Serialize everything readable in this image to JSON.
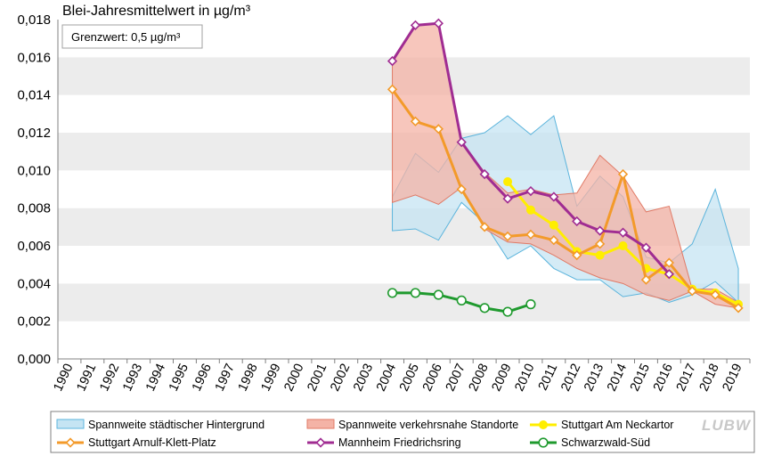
{
  "chart_data": {
    "type": "line",
    "title": "Blei-Jahresmittelwert in µg/m³",
    "note": "Grenzwert: 0,5 µg/m³",
    "ylim": [
      0,
      0.018
    ],
    "y_ticks": [
      "0,000",
      "0,002",
      "0,004",
      "0,006",
      "0,008",
      "0,010",
      "0,012",
      "0,014",
      "0,016",
      "0,018"
    ],
    "y_tick_values": [
      0,
      0.002,
      0.004,
      0.006,
      0.008,
      0.01,
      0.012,
      0.014,
      0.016,
      0.018
    ],
    "categories": [
      "1990",
      "1991",
      "1992",
      "1993",
      "1994",
      "1995",
      "1996",
      "1997",
      "1998",
      "1999",
      "2000",
      "2001",
      "2002",
      "2003",
      "2004",
      "2005",
      "2006",
      "2007",
      "2008",
      "2009",
      "2010",
      "2011",
      "2012",
      "2013",
      "2014",
      "2015",
      "2016",
      "2017",
      "2018",
      "2019"
    ],
    "grid": "horizontal bands",
    "legend_position": "bottom",
    "ranges": [
      {
        "name": "Spannweite städtischer Hintergrund",
        "fill": "#c5e4f3",
        "stroke": "#5bb4dc",
        "x": [
          2004,
          2005,
          2006,
          2007,
          2008,
          2009,
          2010,
          2011,
          2012,
          2013,
          2014,
          2015,
          2016,
          2017,
          2018,
          2019
        ],
        "upper": [
          0.0086,
          0.0109,
          0.0099,
          0.0117,
          0.012,
          0.0129,
          0.0119,
          0.0129,
          0.0081,
          0.0097,
          0.0086,
          0.0054,
          0.0051,
          0.0061,
          0.009,
          0.0048
        ],
        "lower": [
          0.0068,
          0.0069,
          0.0063,
          0.0083,
          0.0072,
          0.0053,
          0.006,
          0.0048,
          0.0042,
          0.0042,
          0.0033,
          0.0035,
          0.003,
          0.0034,
          0.0041,
          0.003
        ]
      },
      {
        "name": "Spannweite verkehrsnahe Standorte",
        "fill": "#f4b3a6",
        "stroke": "#e07a66",
        "x": [
          2004,
          2005,
          2006,
          2007,
          2008,
          2009,
          2010,
          2011,
          2012,
          2013,
          2014,
          2015,
          2016,
          2017,
          2018,
          2019
        ],
        "upper": [
          0.0158,
          0.0177,
          0.0178,
          0.0115,
          0.0099,
          0.0088,
          0.009,
          0.0087,
          0.0088,
          0.0108,
          0.0097,
          0.0078,
          0.0081,
          0.0037,
          0.0037,
          0.003
        ],
        "lower": [
          0.0083,
          0.0087,
          0.0082,
          0.0091,
          0.0069,
          0.0062,
          0.0061,
          0.0055,
          0.0048,
          0.0043,
          0.004,
          0.0034,
          0.0031,
          0.0036,
          0.0029,
          0.0027
        ]
      }
    ],
    "series": [
      {
        "name": "Stuttgart Am Neckartor",
        "color": "#ffee00",
        "marker": "dot",
        "x": [
          2009,
          2010,
          2011,
          2012,
          2013,
          2014,
          2015,
          2016,
          2017,
          2018,
          2019
        ],
        "values": [
          0.0094,
          0.0079,
          0.0071,
          0.0057,
          0.0055,
          0.006,
          0.0048,
          0.0045,
          0.0037,
          0.0035,
          0.0029
        ]
      },
      {
        "name": "Stuttgart Arnulf-Klett-Platz",
        "color": "#f39a2a",
        "marker": "diamond",
        "x": [
          2004,
          2005,
          2006,
          2007,
          2008,
          2009,
          2010,
          2011,
          2012,
          2013,
          2014,
          2015,
          2016,
          2017,
          2018,
          2019
        ],
        "values": [
          0.0143,
          0.0126,
          0.0122,
          0.009,
          0.007,
          0.0065,
          0.0066,
          0.0063,
          0.0055,
          0.0061,
          0.0098,
          0.0042,
          0.0051,
          0.0036,
          0.0034,
          0.0027
        ]
      },
      {
        "name": "Mannheim Friedrichsring",
        "color": "#a02c92",
        "marker": "diamond",
        "x": [
          2004,
          2005,
          2006,
          2007,
          2008,
          2009,
          2010,
          2011,
          2012,
          2013,
          2014,
          2015,
          2016
        ],
        "values": [
          0.0158,
          0.0177,
          0.0178,
          0.0115,
          0.0098,
          0.0085,
          0.0089,
          0.0086,
          0.0073,
          0.0068,
          0.0067,
          0.0059,
          0.0045
        ]
      },
      {
        "name": "Schwarzwald-Süd",
        "color": "#1f9a2e",
        "marker": "circle",
        "x": [
          2004,
          2005,
          2006,
          2007,
          2008,
          2009,
          2010
        ],
        "values": [
          0.0035,
          0.0035,
          0.0034,
          0.0031,
          0.0027,
          0.0025,
          0.0029
        ]
      }
    ]
  },
  "logo": {
    "text": "LUBW"
  }
}
